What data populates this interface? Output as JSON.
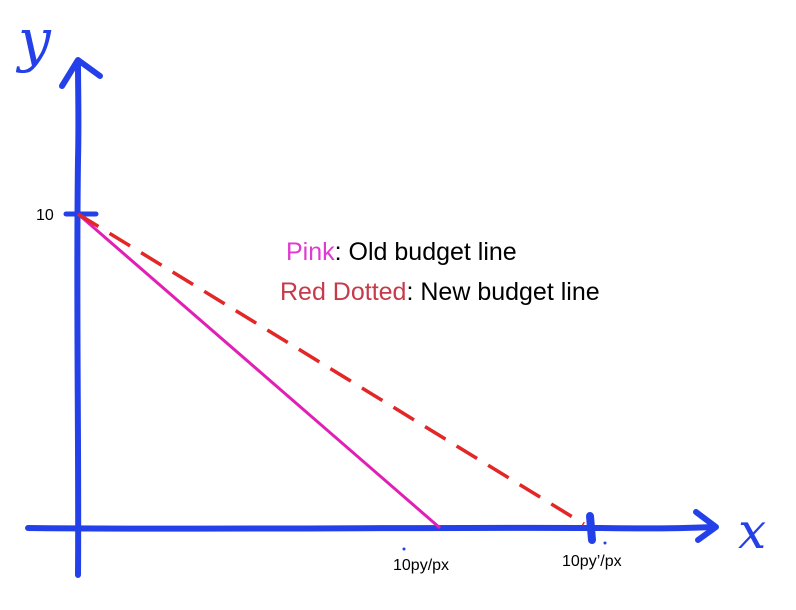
{
  "axes": {
    "y_axis_label": "y",
    "x_axis_label": "x",
    "y_tick_label": "10",
    "x_tick_old": "10py/px",
    "x_tick_new": "10py’/px"
  },
  "legend": {
    "pink_key": "Pink",
    "pink_text": ": Old budget line",
    "red_key": "Red Dotted",
    "red_text": ": New budget line"
  },
  "colors": {
    "axis": "#2440e8",
    "old_line": "#e21fb4",
    "new_line": "#e32626",
    "pink_word": "#e23ad0",
    "red_word": "#c73a4a"
  },
  "chart_data": {
    "type": "line",
    "series": [
      {
        "name": "Old budget line",
        "points": [
          [
            "0",
            10
          ],
          [
            "10py/px",
            0
          ]
        ]
      },
      {
        "name": "New budget line",
        "points": [
          [
            "0",
            10
          ],
          [
            "10py’/px",
            0
          ]
        ]
      }
    ]
  }
}
